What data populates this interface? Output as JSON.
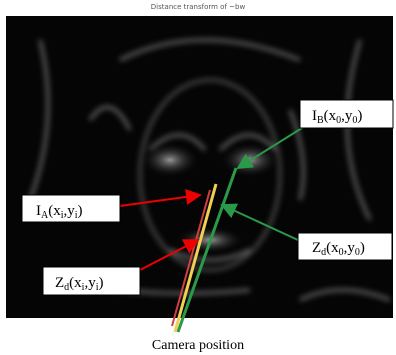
{
  "figure": {
    "title": "Distance transform of ~bw",
    "labels": [
      {
        "parts": [
          "I",
          "B",
          "(x",
          "0",
          ",y",
          "0",
          ")"
        ]
      },
      {
        "parts": [
          "I",
          "A",
          "(x",
          "i",
          ",y",
          "i",
          ")"
        ]
      },
      {
        "parts": [
          "Z",
          "d",
          "(x",
          "0",
          ",y",
          "0",
          ")"
        ]
      },
      {
        "parts": [
          "Z",
          "d",
          "(x",
          "i",
          ",y",
          "i",
          ")"
        ]
      }
    ],
    "caption": "Camera position"
  }
}
